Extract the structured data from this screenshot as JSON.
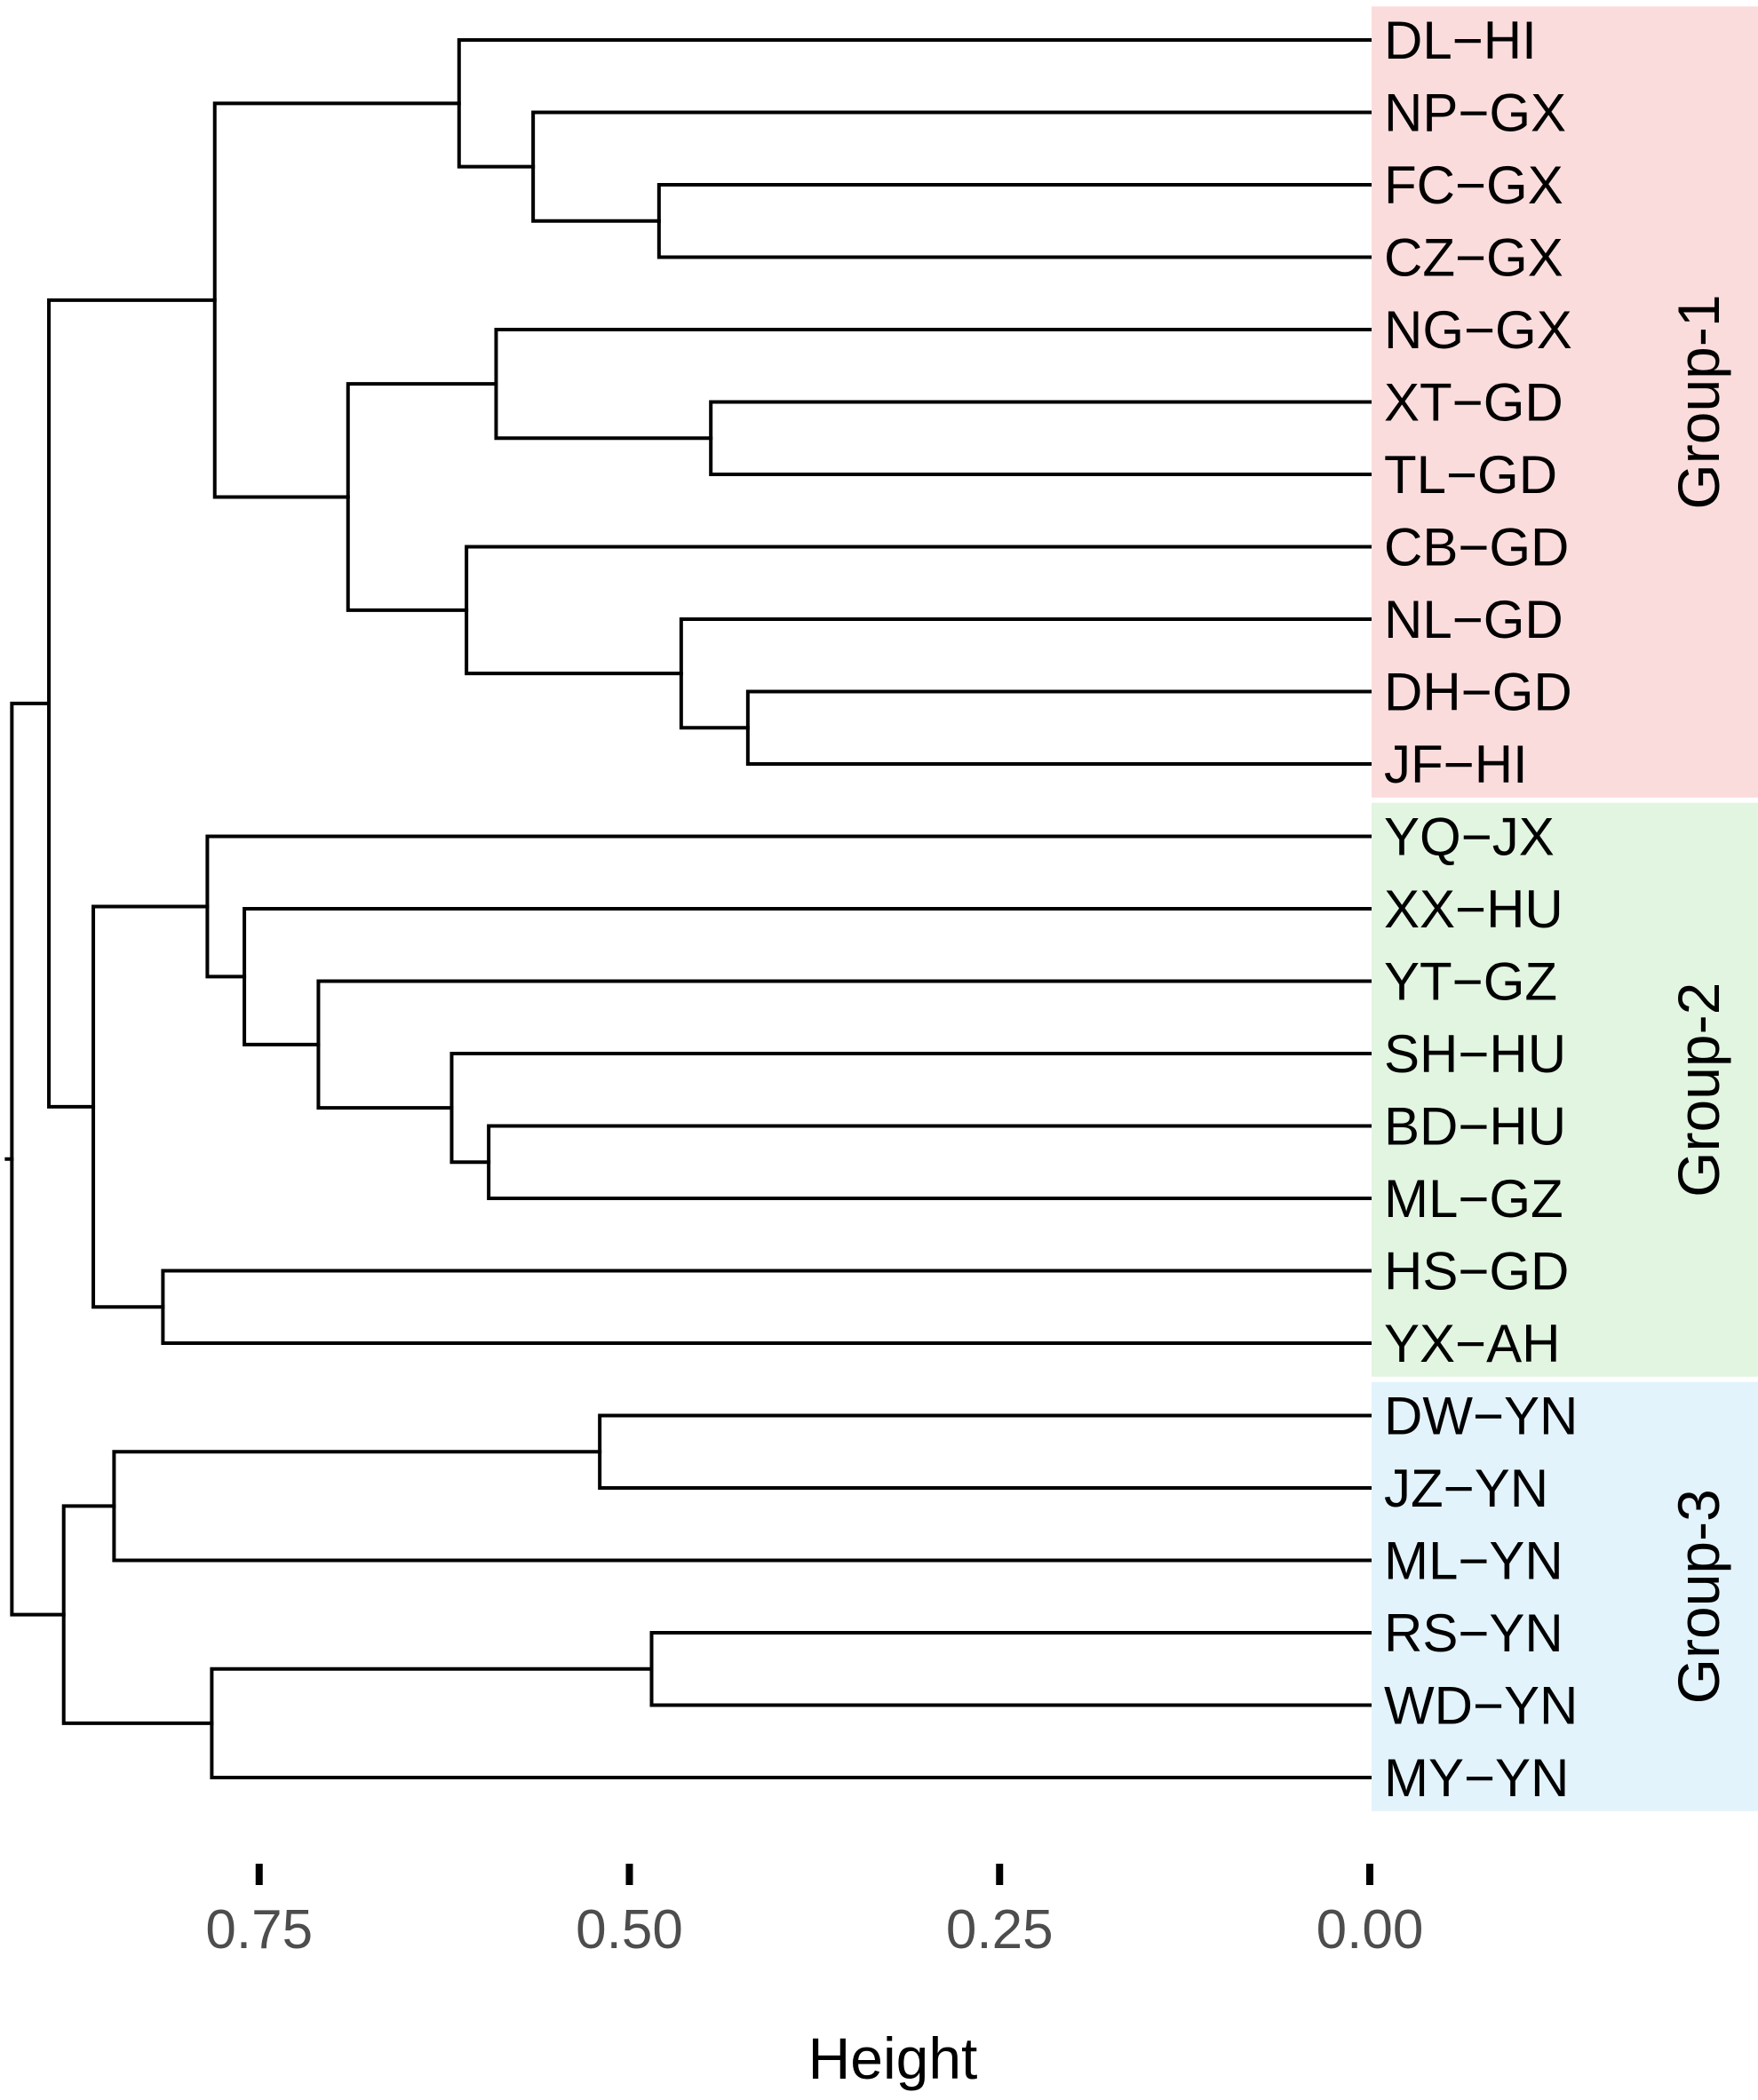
{
  "chart_data": {
    "type": "dendrogram",
    "orientation": "horizontal",
    "xlabel": "Height",
    "xlim": [
      0.92,
      -0.26
    ],
    "xticks": [
      0.75,
      0.5,
      0.25,
      0.0
    ],
    "xtick_labels": [
      "0.75",
      "0.50",
      "0.25",
      "0.00"
    ],
    "leaves": [
      "DL−HI",
      "NP−GX",
      "FC−GX",
      "CZ−GX",
      "NG−GX",
      "XT−GD",
      "TL−GD",
      "CB−GD",
      "NL−GD",
      "DH−GD",
      "JF−HI",
      "YQ−JX",
      "XX−HU",
      "YT−GZ",
      "SH−HU",
      "BD−HU",
      "ML−GZ",
      "HS−GD",
      "YX−AH",
      "DW−YN",
      "JZ−YN",
      "ML−YN",
      "RS−YN",
      "WD−YN",
      "MY−YN"
    ],
    "merges": [
      {
        "left": 2,
        "right": 3,
        "height": 0.48
      },
      {
        "left": 1,
        "right": "m0",
        "height": 0.565
      },
      {
        "left": 0,
        "right": "m1",
        "height": 0.615
      },
      {
        "left": 5,
        "right": 6,
        "height": 0.445
      },
      {
        "left": 4,
        "right": "m3",
        "height": 0.59
      },
      {
        "left": 9,
        "right": 10,
        "height": 0.42
      },
      {
        "left": 8,
        "right": "m5",
        "height": 0.465
      },
      {
        "left": 7,
        "right": "m6",
        "height": 0.61
      },
      {
        "left": "m4",
        "right": "m7",
        "height": 0.69
      },
      {
        "left": "m2",
        "right": "m8",
        "height": 0.78
      },
      {
        "left": 15,
        "right": 16,
        "height": 0.595
      },
      {
        "left": 14,
        "right": "m10",
        "height": 0.62
      },
      {
        "left": 13,
        "right": "m11",
        "height": 0.71
      },
      {
        "left": 12,
        "right": "m12",
        "height": 0.76
      },
      {
        "left": 11,
        "right": "m13",
        "height": 0.785
      },
      {
        "left": 17,
        "right": 18,
        "height": 0.815
      },
      {
        "left": "m14",
        "right": "m15",
        "height": 0.862
      },
      {
        "left": "m9",
        "right": "m16",
        "height": 0.892
      },
      {
        "left": 19,
        "right": 20,
        "height": 0.52
      },
      {
        "left": "m18",
        "right": 21,
        "height": 0.848
      },
      {
        "left": 22,
        "right": 23,
        "height": 0.485
      },
      {
        "left": "m20",
        "right": 24,
        "height": 0.782
      },
      {
        "left": "m19",
        "right": "m21",
        "height": 0.882
      },
      {
        "left": "m17",
        "right": "m22",
        "height": 0.917
      }
    ],
    "groups": [
      {
        "name": "Group-1",
        "start": 0,
        "end": 10,
        "color": "#fbdcdc"
      },
      {
        "name": "Group-2",
        "start": 11,
        "end": 18,
        "color": "#e1f5e1"
      },
      {
        "name": "Group-3",
        "start": 19,
        "end": 24,
        "color": "#e2f3fb"
      }
    ]
  }
}
